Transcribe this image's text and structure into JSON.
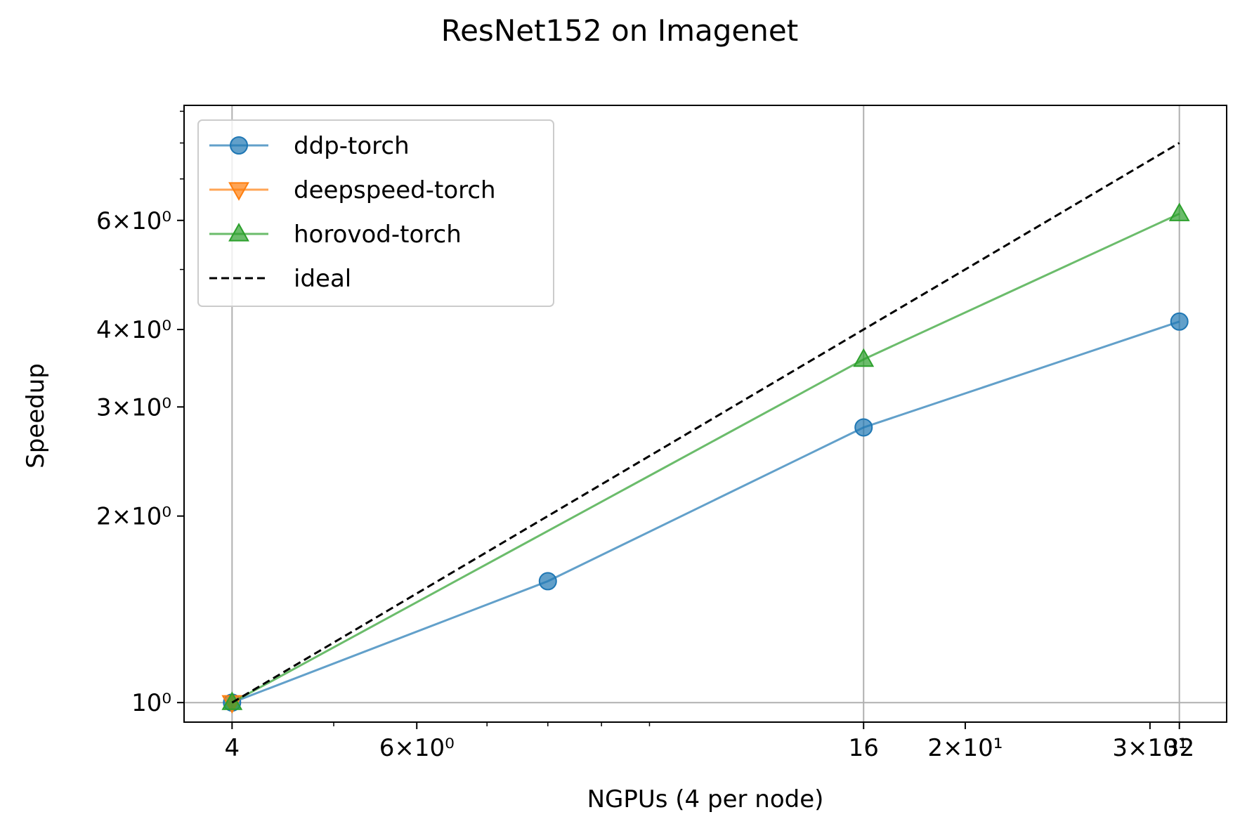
{
  "chart_data": {
    "type": "line",
    "title": "ResNet152 on Imagenet",
    "xlabel": "NGPUs (4 per node)",
    "ylabel": "Speedup",
    "xscale": "log",
    "yscale": "log",
    "xlim": [
      3.6,
      35.5
    ],
    "ylim": [
      0.93,
      9.2
    ],
    "grid": true,
    "legend_position": "upper-left",
    "x_ticks": [
      {
        "value": 4,
        "label": "4"
      },
      {
        "value": 6,
        "label": "6×10⁰"
      },
      {
        "value": 16,
        "label": "16"
      },
      {
        "value": 20,
        "label": "2×10¹"
      },
      {
        "value": 30,
        "label": "3×10¹"
      },
      {
        "value": 32,
        "label": "32"
      }
    ],
    "x_minor_ticks": [
      5,
      7,
      8,
      9,
      10,
      40
    ],
    "y_ticks": [
      {
        "value": 1,
        "label": "10⁰"
      },
      {
        "value": 2,
        "label": "2×10⁰"
      },
      {
        "value": 3,
        "label": "3×10⁰"
      },
      {
        "value": 4,
        "label": "4×10⁰"
      },
      {
        "value": 6,
        "label": "6×10⁰"
      }
    ],
    "y_minor_ticks": [
      5,
      7,
      8,
      9
    ],
    "x_grid": [
      4,
      16,
      32
    ],
    "y_grid": [
      1
    ],
    "series": [
      {
        "name": "ddp-torch",
        "color": "#1f77b4",
        "marker": "circle",
        "linestyle": "solid",
        "x": [
          4,
          8,
          16,
          32
        ],
        "y": [
          1.0,
          1.57,
          2.78,
          4.12
        ]
      },
      {
        "name": "deepspeed-torch",
        "color": "#ff7f0e",
        "marker": "triangle-down",
        "linestyle": "solid",
        "x": [
          4
        ],
        "y": [
          1.0
        ]
      },
      {
        "name": "horovod-torch",
        "color": "#2ca02c",
        "marker": "triangle-up",
        "linestyle": "solid",
        "x": [
          4,
          16,
          32
        ],
        "y": [
          1.0,
          3.58,
          6.15
        ]
      },
      {
        "name": "ideal",
        "color": "#000000",
        "marker": "none",
        "linestyle": "dashed",
        "x": [
          4,
          32
        ],
        "y": [
          1.0,
          8.0
        ]
      }
    ]
  }
}
